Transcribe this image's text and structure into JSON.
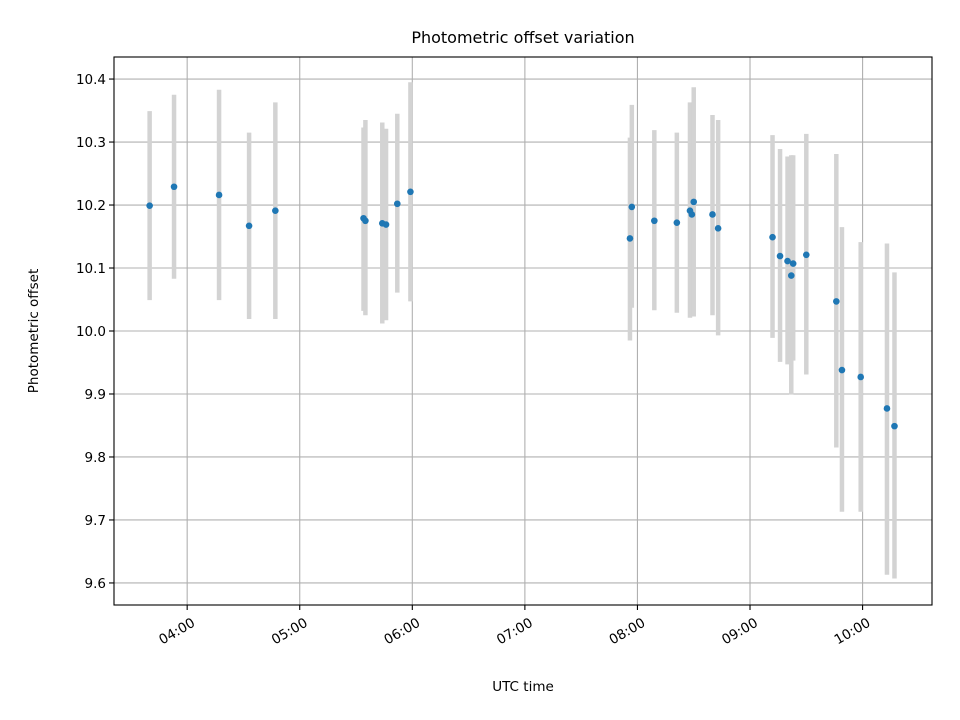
{
  "chart_data": {
    "type": "scatter",
    "title": "Photometric offset variation",
    "xlabel": "UTC time",
    "ylabel": "Photometric offset",
    "xlim": [
      "03:21",
      "10:37"
    ],
    "ylim": [
      9.565,
      10.435
    ],
    "xticks": [
      "04:00",
      "05:00",
      "06:00",
      "07:00",
      "08:00",
      "09:00",
      "10:00"
    ],
    "yticks": [
      "9.6",
      "9.7",
      "9.8",
      "9.9",
      "10.0",
      "10.1",
      "10.2",
      "10.3",
      "10.4"
    ],
    "grid": true,
    "colors": {
      "points": "#1f77b4",
      "errorbars": "#d3d3d3",
      "grid": "#b0b0b0"
    },
    "series": [
      {
        "marker": "point",
        "points": [
          {
            "x": "03:40",
            "y": 10.199,
            "ylow": 10.049,
            "yhigh": 10.349
          },
          {
            "x": "03:53",
            "y": 10.229,
            "ylow": 10.083,
            "yhigh": 10.375
          },
          {
            "x": "04:17",
            "y": 10.216,
            "ylow": 10.049,
            "yhigh": 10.383
          },
          {
            "x": "04:33",
            "y": 10.167,
            "ylow": 10.019,
            "yhigh": 10.315
          },
          {
            "x": "04:47",
            "y": 10.191,
            "ylow": 10.019,
            "yhigh": 10.363
          },
          {
            "x": "05:34",
            "y": 10.179,
            "ylow": 10.032,
            "yhigh": 10.323
          },
          {
            "x": "05:35",
            "y": 10.175,
            "ylow": 10.025,
            "yhigh": 10.335
          },
          {
            "x": "05:44",
            "y": 10.171,
            "ylow": 10.012,
            "yhigh": 10.331
          },
          {
            "x": "05:46",
            "y": 10.169,
            "ylow": 10.017,
            "yhigh": 10.321
          },
          {
            "x": "05:52",
            "y": 10.202,
            "ylow": 10.061,
            "yhigh": 10.345
          },
          {
            "x": "05:59",
            "y": 10.221,
            "ylow": 10.047,
            "yhigh": 10.395
          },
          {
            "x": "07:56",
            "y": 10.147,
            "ylow": 9.985,
            "yhigh": 10.307
          },
          {
            "x": "07:57",
            "y": 10.197,
            "ylow": 10.037,
            "yhigh": 10.359
          },
          {
            "x": "08:09",
            "y": 10.175,
            "ylow": 10.033,
            "yhigh": 10.319
          },
          {
            "x": "08:21",
            "y": 10.172,
            "ylow": 10.029,
            "yhigh": 10.315
          },
          {
            "x": "08:28",
            "y": 10.191,
            "ylow": 10.021,
            "yhigh": 10.363
          },
          {
            "x": "08:29",
            "y": 10.185,
            "ylow": 10.023,
            "yhigh": 10.345
          },
          {
            "x": "08:30",
            "y": 10.205,
            "ylow": 10.023,
            "yhigh": 10.387
          },
          {
            "x": "08:40",
            "y": 10.185,
            "ylow": 10.025,
            "yhigh": 10.343
          },
          {
            "x": "08:43",
            "y": 10.163,
            "ylow": 9.993,
            "yhigh": 10.335
          },
          {
            "x": "09:12",
            "y": 10.149,
            "ylow": 9.989,
            "yhigh": 10.311
          },
          {
            "x": "09:16",
            "y": 10.119,
            "ylow": 9.951,
            "yhigh": 10.289
          },
          {
            "x": "09:20",
            "y": 10.111,
            "ylow": 9.947,
            "yhigh": 10.277
          },
          {
            "x": "09:22",
            "y": 10.088,
            "ylow": 9.899,
            "yhigh": 10.279
          },
          {
            "x": "09:23",
            "y": 10.107,
            "ylow": 9.953,
            "yhigh": 10.279
          },
          {
            "x": "09:30",
            "y": 10.121,
            "ylow": 9.931,
            "yhigh": 10.313
          },
          {
            "x": "09:46",
            "y": 10.047,
            "ylow": 9.815,
            "yhigh": 10.281
          },
          {
            "x": "09:49",
            "y": 9.938,
            "ylow": 9.713,
            "yhigh": 10.165
          },
          {
            "x": "09:59",
            "y": 9.927,
            "ylow": 9.713,
            "yhigh": 10.141
          },
          {
            "x": "10:13",
            "y": 9.877,
            "ylow": 9.613,
            "yhigh": 10.139
          },
          {
            "x": "10:17",
            "y": 9.849,
            "ylow": 9.607,
            "yhigh": 10.093
          }
        ]
      }
    ]
  }
}
